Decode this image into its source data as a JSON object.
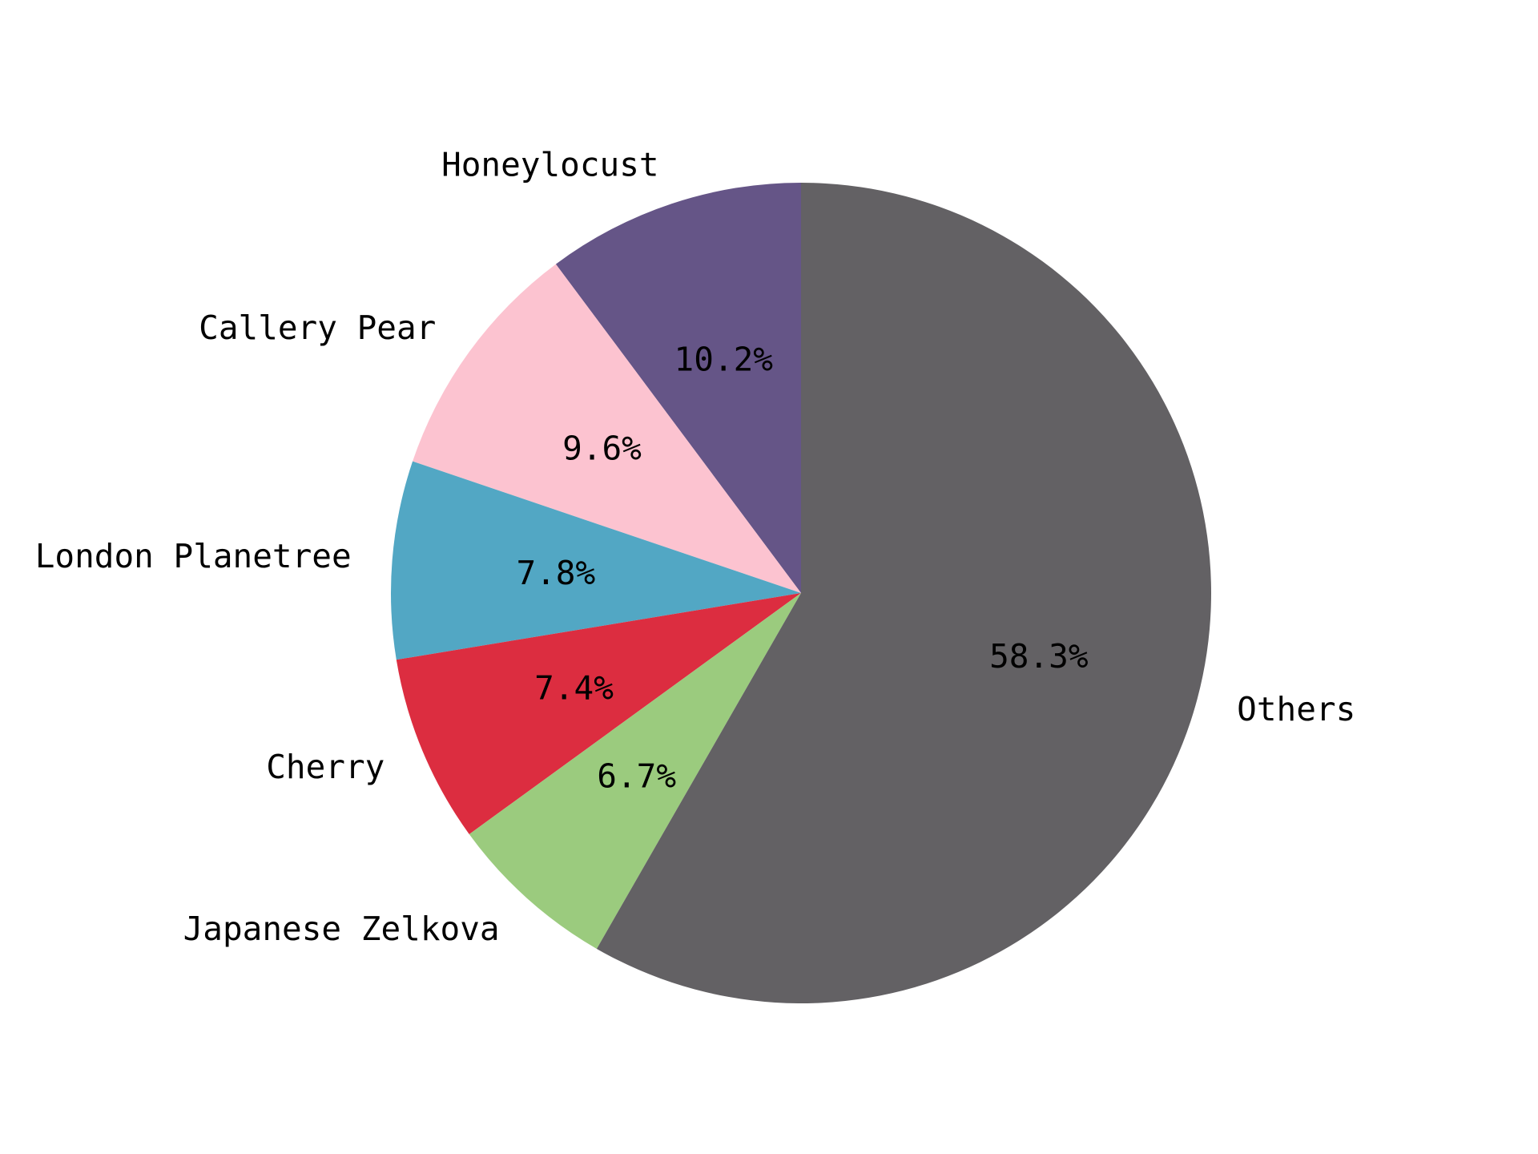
{
  "chart_data": {
    "type": "pie",
    "title": "",
    "start_angle_deg": 90,
    "direction": "counterclockwise",
    "categories": [
      "Honeylocust",
      "Callery Pear",
      "London Planetree",
      "Cherry",
      "Japanese Zelkova",
      "Others"
    ],
    "values": [
      10.2,
      9.6,
      7.8,
      7.4,
      6.7,
      58.3
    ],
    "percent_labels": [
      "10.2%",
      "9.6%",
      "7.8%",
      "7.4%",
      "6.7%",
      "58.3%"
    ],
    "colors": [
      "#655587",
      "#fcc3d0",
      "#52a7c4",
      "#dc2d40",
      "#9bcb7e",
      "#636164"
    ],
    "legend": "none"
  }
}
